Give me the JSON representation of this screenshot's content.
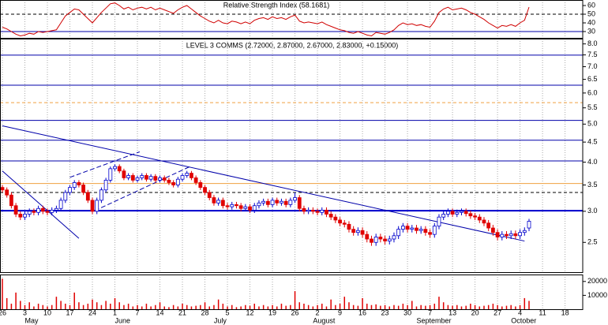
{
  "chart_data": [
    {
      "type": "line",
      "title": "Relative Strength Index (58.1681)",
      "color": "#d00000",
      "values": [
        35,
        33,
        30,
        27,
        25,
        26,
        28,
        27,
        30,
        29,
        30,
        31,
        32,
        40,
        48,
        52,
        56,
        55,
        50,
        45,
        40,
        46,
        52,
        57,
        62,
        63,
        60,
        56,
        58,
        55,
        57,
        58,
        56,
        58,
        55,
        57,
        55,
        53,
        51,
        55,
        58,
        60,
        56,
        52,
        48,
        45,
        42,
        40,
        43,
        40,
        39,
        42,
        41,
        39,
        41,
        39,
        43,
        45,
        46,
        44,
        47,
        45,
        46,
        44,
        47,
        49,
        42,
        40,
        41,
        40,
        39,
        41,
        38,
        36,
        34,
        32,
        31,
        29,
        28,
        30,
        28,
        26,
        25,
        29,
        28,
        27,
        29,
        32,
        37,
        40,
        38,
        39,
        37,
        38,
        36,
        35,
        42,
        52,
        56,
        58,
        55,
        56,
        57,
        55,
        52,
        50,
        47,
        44,
        40,
        37,
        34,
        37,
        36,
        38,
        36,
        40,
        43,
        58.1681,
        null,
        null,
        null,
        null,
        null,
        null,
        null,
        null,
        null,
        null
      ],
      "ylim": [
        22.7,
        66.4
      ],
      "yticks": [
        60,
        50,
        40,
        30
      ],
      "hlines": [
        {
          "value": 50,
          "color": "#000000",
          "dash": true
        },
        {
          "value": 30,
          "color": "#0000aa",
          "dash": false
        }
      ]
    },
    {
      "type": "candlestick",
      "title": "LEVEL 3 COMMS (2.72000, 2.87000, 2.67000, 2.83000, +0.15000)",
      "categories": [
        "26",
        null,
        null,
        null,
        null,
        "3",
        null,
        null,
        null,
        null,
        "10",
        null,
        null,
        null,
        null,
        "17",
        null,
        null,
        null,
        null,
        "24",
        null,
        null,
        null,
        null,
        "1",
        null,
        null,
        null,
        null,
        "7",
        null,
        null,
        null,
        null,
        "14",
        null,
        null,
        null,
        null,
        "21",
        null,
        null,
        null,
        null,
        "28",
        null,
        null,
        null,
        null,
        "5",
        null,
        null,
        null,
        null,
        "12",
        null,
        null,
        null,
        null,
        "19",
        null,
        null,
        null,
        null,
        "26",
        null,
        null,
        null,
        null,
        "2",
        null,
        null,
        null,
        null,
        "9",
        null,
        null,
        null,
        null,
        "16",
        null,
        null,
        null,
        null,
        "23",
        null,
        null,
        null,
        null,
        "30",
        null,
        null,
        null,
        null,
        "7",
        null,
        null,
        null,
        null,
        "13",
        null,
        null,
        null,
        null,
        "20",
        null,
        null,
        null,
        null,
        "27",
        null,
        null,
        null,
        null,
        "4",
        null,
        null,
        null,
        null,
        "11",
        null,
        null,
        null,
        null,
        "18",
        null,
        null
      ],
      "month_ticks": [
        {
          "value": 5,
          "label": "May"
        },
        {
          "value": 25,
          "label": "June"
        },
        {
          "value": 47,
          "label": "July"
        },
        {
          "value": 69,
          "label": "August"
        },
        {
          "value": 92,
          "label": "September"
        },
        {
          "value": 113,
          "label": "October"
        }
      ],
      "open": [
        3.45,
        3.4,
        3.3,
        3.1,
        2.95,
        2.9,
        2.95,
        3.0,
        2.98,
        3.05,
        3.0,
        2.98,
        3.02,
        3.05,
        3.2,
        3.35,
        3.45,
        3.55,
        3.5,
        3.35,
        3.2,
        3.0,
        3.2,
        3.4,
        3.6,
        3.85,
        3.9,
        3.8,
        3.65,
        3.7,
        3.6,
        3.65,
        3.7,
        3.62,
        3.68,
        3.6,
        3.65,
        3.6,
        3.55,
        3.5,
        3.62,
        3.7,
        3.75,
        3.65,
        3.55,
        3.45,
        3.35,
        3.25,
        3.15,
        3.2,
        3.1,
        3.08,
        3.12,
        3.1,
        3.05,
        3.08,
        3.02,
        3.1,
        3.15,
        3.18,
        3.12,
        3.2,
        3.15,
        3.18,
        3.12,
        3.2,
        3.25,
        3.05,
        3.0,
        3.02,
        3.0,
        2.98,
        3.02,
        2.95,
        2.9,
        2.85,
        2.8,
        2.78,
        2.7,
        2.65,
        2.68,
        2.62,
        2.55,
        2.5,
        2.58,
        2.55,
        2.52,
        2.55,
        2.6,
        2.7,
        2.75,
        2.7,
        2.72,
        2.68,
        2.7,
        2.65,
        2.62,
        2.75,
        2.9,
        2.95,
        3.0,
        2.95,
        2.98,
        3.0,
        2.96,
        2.92,
        2.9,
        2.85,
        2.8,
        2.72,
        2.65,
        2.58,
        2.62,
        2.6,
        2.63,
        2.6,
        2.65,
        2.72,
        null,
        null,
        null,
        null,
        null,
        null,
        null,
        null,
        null,
        null
      ],
      "high": [
        3.5,
        3.45,
        3.35,
        3.15,
        3.0,
        3.0,
        3.05,
        3.05,
        3.1,
        3.1,
        3.05,
        3.07,
        3.1,
        3.25,
        3.4,
        3.5,
        3.6,
        3.6,
        3.55,
        3.4,
        3.25,
        3.25,
        3.45,
        3.65,
        3.9,
        3.95,
        3.95,
        3.85,
        3.75,
        3.75,
        3.7,
        3.75,
        3.75,
        3.73,
        3.73,
        3.7,
        3.7,
        3.65,
        3.6,
        3.67,
        3.75,
        3.8,
        3.8,
        3.7,
        3.6,
        3.5,
        3.4,
        3.3,
        3.25,
        3.25,
        3.15,
        3.17,
        3.17,
        3.15,
        3.13,
        3.13,
        3.15,
        3.2,
        3.23,
        3.23,
        3.25,
        3.25,
        3.23,
        3.23,
        3.25,
        3.35,
        3.3,
        3.1,
        3.07,
        3.07,
        3.05,
        3.07,
        3.07,
        3.0,
        2.95,
        2.9,
        2.85,
        2.83,
        2.75,
        2.73,
        2.73,
        2.67,
        2.6,
        2.63,
        2.63,
        2.6,
        2.6,
        2.65,
        2.75,
        2.8,
        2.8,
        2.77,
        2.77,
        2.75,
        2.75,
        2.7,
        2.8,
        2.95,
        3.0,
        3.05,
        3.05,
        3.03,
        3.05,
        3.05,
        3.01,
        2.97,
        2.95,
        2.9,
        2.85,
        2.77,
        2.7,
        2.67,
        2.67,
        2.68,
        2.68,
        2.7,
        2.73,
        2.87,
        null,
        null,
        null,
        null,
        null,
        null,
        null,
        null,
        null,
        null
      ],
      "low": [
        3.35,
        3.25,
        3.05,
        2.9,
        2.85,
        2.85,
        2.9,
        2.93,
        2.93,
        2.95,
        2.93,
        2.93,
        2.97,
        3.0,
        3.15,
        3.3,
        3.4,
        3.45,
        3.3,
        3.15,
        2.95,
        2.95,
        3.15,
        3.35,
        3.55,
        3.8,
        3.75,
        3.6,
        3.6,
        3.55,
        3.55,
        3.6,
        3.57,
        3.57,
        3.55,
        3.55,
        3.55,
        3.5,
        3.45,
        3.45,
        3.57,
        3.65,
        3.6,
        3.5,
        3.4,
        3.3,
        3.2,
        3.1,
        3.1,
        3.05,
        3.03,
        3.03,
        3.05,
        3.0,
        3.0,
        2.97,
        2.97,
        3.05,
        3.1,
        3.07,
        3.07,
        3.1,
        3.1,
        3.07,
        3.07,
        3.15,
        3.0,
        2.95,
        2.95,
        2.95,
        2.93,
        2.93,
        2.9,
        2.85,
        2.8,
        2.75,
        2.73,
        2.65,
        2.6,
        2.6,
        2.57,
        2.5,
        2.45,
        2.45,
        2.5,
        2.47,
        2.47,
        2.5,
        2.55,
        2.65,
        2.65,
        2.65,
        2.63,
        2.63,
        2.6,
        2.57,
        2.57,
        2.7,
        2.85,
        2.9,
        2.9,
        2.9,
        2.93,
        2.91,
        2.87,
        2.85,
        2.8,
        2.75,
        2.67,
        2.6,
        2.53,
        2.53,
        2.55,
        2.55,
        2.55,
        2.55,
        2.6,
        2.67,
        null,
        null,
        null,
        null,
        null,
        null,
        null,
        null,
        null,
        null
      ],
      "close": [
        3.4,
        3.3,
        3.1,
        2.95,
        2.9,
        2.95,
        3.0,
        2.98,
        3.05,
        3.0,
        2.98,
        3.02,
        3.05,
        3.2,
        3.35,
        3.45,
        3.55,
        3.5,
        3.35,
        3.2,
        3.0,
        3.2,
        3.4,
        3.6,
        3.85,
        3.9,
        3.8,
        3.65,
        3.7,
        3.6,
        3.65,
        3.7,
        3.62,
        3.68,
        3.6,
        3.65,
        3.6,
        3.55,
        3.5,
        3.62,
        3.7,
        3.75,
        3.65,
        3.55,
        3.45,
        3.35,
        3.25,
        3.15,
        3.2,
        3.1,
        3.08,
        3.12,
        3.1,
        3.05,
        3.08,
        3.02,
        3.1,
        3.15,
        3.18,
        3.12,
        3.2,
        3.15,
        3.18,
        3.12,
        3.2,
        3.25,
        3.05,
        3.0,
        3.02,
        3.0,
        2.98,
        3.02,
        2.95,
        2.9,
        2.85,
        2.8,
        2.78,
        2.7,
        2.65,
        2.68,
        2.62,
        2.55,
        2.5,
        2.58,
        2.55,
        2.52,
        2.55,
        2.6,
        2.7,
        2.75,
        2.7,
        2.72,
        2.68,
        2.7,
        2.65,
        2.62,
        2.75,
        2.9,
        2.95,
        3.0,
        2.95,
        2.98,
        3.0,
        2.96,
        2.92,
        2.9,
        2.85,
        2.8,
        2.72,
        2.65,
        2.58,
        2.62,
        2.6,
        2.63,
        2.6,
        2.65,
        2.68,
        2.83,
        null,
        null,
        null,
        null,
        null,
        null,
        null,
        null,
        null,
        null
      ],
      "up_color": "#0000cc",
      "down_color": "#e00000",
      "log_y": true,
      "ylim": [
        2.1,
        8.25
      ],
      "yticks": [
        {
          "value": 8.0,
          "label": "8.0"
        },
        7.5,
        {
          "value": 7.0,
          "label": "7.0"
        },
        6.5,
        {
          "value": 6.0,
          "label": "6.0"
        },
        5.5,
        {
          "value": 5.0,
          "label": "5.0"
        },
        4.5,
        {
          "value": 4.0,
          "label": "4.0"
        },
        3.5,
        {
          "value": 3.0,
          "label": "3.0"
        },
        2.5
      ],
      "hlines": [
        {
          "value": 7.49,
          "color": "#0000aa",
          "dash": false
        },
        {
          "value": 6.28,
          "color": "#0000aa",
          "dash": false
        },
        {
          "value": 5.67,
          "color": "#f0a040",
          "dash": true
        },
        {
          "value": 5.11,
          "color": "#0000aa",
          "dash": false
        },
        {
          "value": 4.55,
          "color": "#0000aa",
          "dash": false
        },
        {
          "value": 4.03,
          "color": "#0000aa",
          "dash": false
        },
        {
          "value": 3.53,
          "color": "#f0a040",
          "dash": false
        },
        {
          "value": 3.35,
          "color": "#000000",
          "dash": true
        },
        {
          "value": 3.01,
          "color": "#0000cc",
          "dash": false
        }
      ],
      "trendlines": [
        {
          "x": [
            0,
            116
          ],
          "y": [
            4.95,
            2.52
          ],
          "dash": false
        },
        {
          "x": [
            0,
            17
          ],
          "y": [
            3.8,
            2.56
          ],
          "dash": false
        },
        {
          "x": [
            15,
            30.5
          ],
          "y": [
            3.66,
            4.25
          ],
          "dash": true
        },
        {
          "x": [
            20.5,
            41.5
          ],
          "y": [
            3.01,
            3.89
          ],
          "dash": true
        }
      ]
    },
    {
      "type": "bar",
      "color": "#e00000",
      "values": [
        22000,
        8000,
        4000,
        12000,
        6000,
        3000,
        5000,
        2000,
        4000,
        3000,
        2000,
        3000,
        9000,
        6000,
        4000,
        3000,
        12000,
        5000,
        3000,
        4000,
        7000,
        5000,
        3000,
        6000,
        4000,
        8000,
        5000,
        3000,
        4000,
        2000,
        3000,
        2000,
        4000,
        2000,
        3000,
        5000,
        2000,
        1500,
        3000,
        2000,
        4000,
        3000,
        2000,
        2500,
        3000,
        5000,
        2000,
        3000,
        7000,
        4000,
        2000,
        3000,
        1500,
        2000,
        3000,
        2500,
        4000,
        2000,
        3000,
        2000,
        3000,
        2000,
        4000,
        2500,
        3000,
        13000,
        5000,
        4000,
        3000,
        2000,
        3000,
        4000,
        2000,
        7000,
        3000,
        4000,
        9000,
        5000,
        3000,
        2500,
        8000,
        4000,
        3000,
        3500,
        2500,
        3000,
        2000,
        3000,
        2500,
        4000,
        3000,
        6000,
        2000,
        3000,
        2500,
        3000,
        4000,
        9000,
        5000,
        3000,
        2500,
        3000,
        2000,
        2500,
        4000,
        3000,
        2000,
        2500,
        3000,
        4000,
        3000,
        2000,
        2500,
        3000,
        2000,
        3000,
        8000,
        6000,
        null,
        null,
        null,
        null,
        null,
        null,
        null,
        null,
        null,
        null
      ],
      "ylim": [
        0,
        25000
      ],
      "yticks": [
        20000,
        10000
      ]
    }
  ]
}
